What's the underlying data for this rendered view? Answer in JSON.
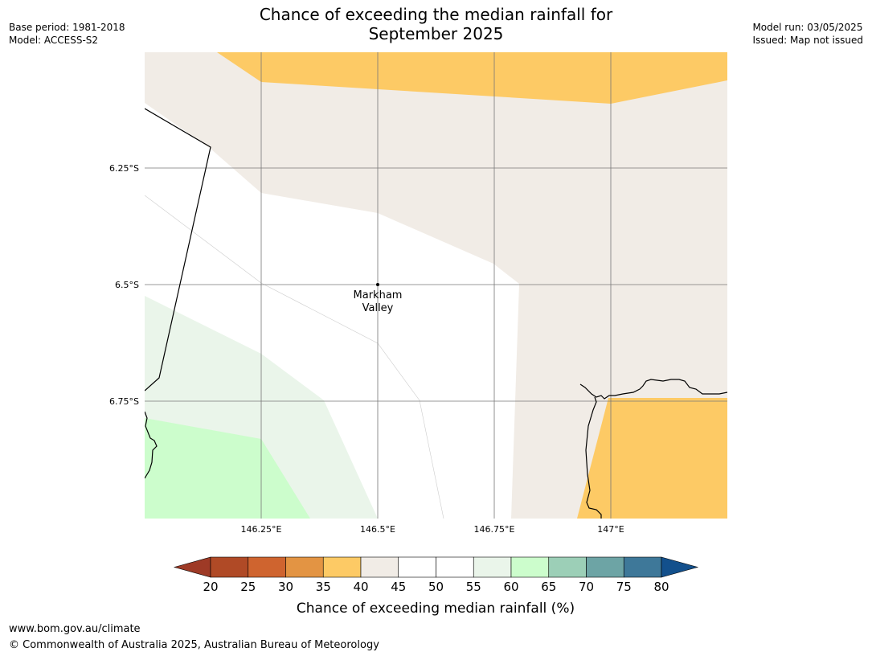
{
  "header": {
    "title_line1": "Chance of exceeding the median rainfall for",
    "title_line2": "September 2025",
    "base_period": "Base period: 1981-2018",
    "model": "Model: ACCESS-S2",
    "model_run": "Model run: 03/05/2025",
    "issued": "Issued: Map not issued"
  },
  "map": {
    "lat_labels": [
      "6.25°S",
      "6.5°S",
      "6.75°S"
    ],
    "lon_labels": [
      "146.25°E",
      "146.5°E",
      "146.75°E",
      "147°E"
    ],
    "place_label_line1": "Markham",
    "place_label_line2": "Valley",
    "colors": {
      "c30_35": "#e39443",
      "c35_40": "#fdca65",
      "c40_45": "#f1ece6",
      "c45_55": "#ffffff",
      "c55_60": "#eaf5ea",
      "c60_65": "#ccfdcc",
      "grid": "#777777",
      "coast": "#000000"
    }
  },
  "colorbar": {
    "ticks": [
      "20",
      "25",
      "30",
      "35",
      "40",
      "45",
      "50",
      "55",
      "60",
      "65",
      "70",
      "75",
      "80"
    ],
    "label": "Chance of exceeding median rainfall (%)",
    "under_color": "#9e3a26",
    "over_color": "#13508c",
    "bins": [
      "#b04a26",
      "#cf642f",
      "#e39443",
      "#fdca65",
      "#f1ece6",
      "#ffffff",
      "#ffffff",
      "#eaf5ea",
      "#ccfdcc",
      "#9ccfb7",
      "#6da4a5",
      "#3e7899"
    ]
  },
  "footer": {
    "url": "www.bom.gov.au/climate",
    "copyright": "© Commonwealth of Australia 2025, Australian Bureau of Meteorology"
  }
}
